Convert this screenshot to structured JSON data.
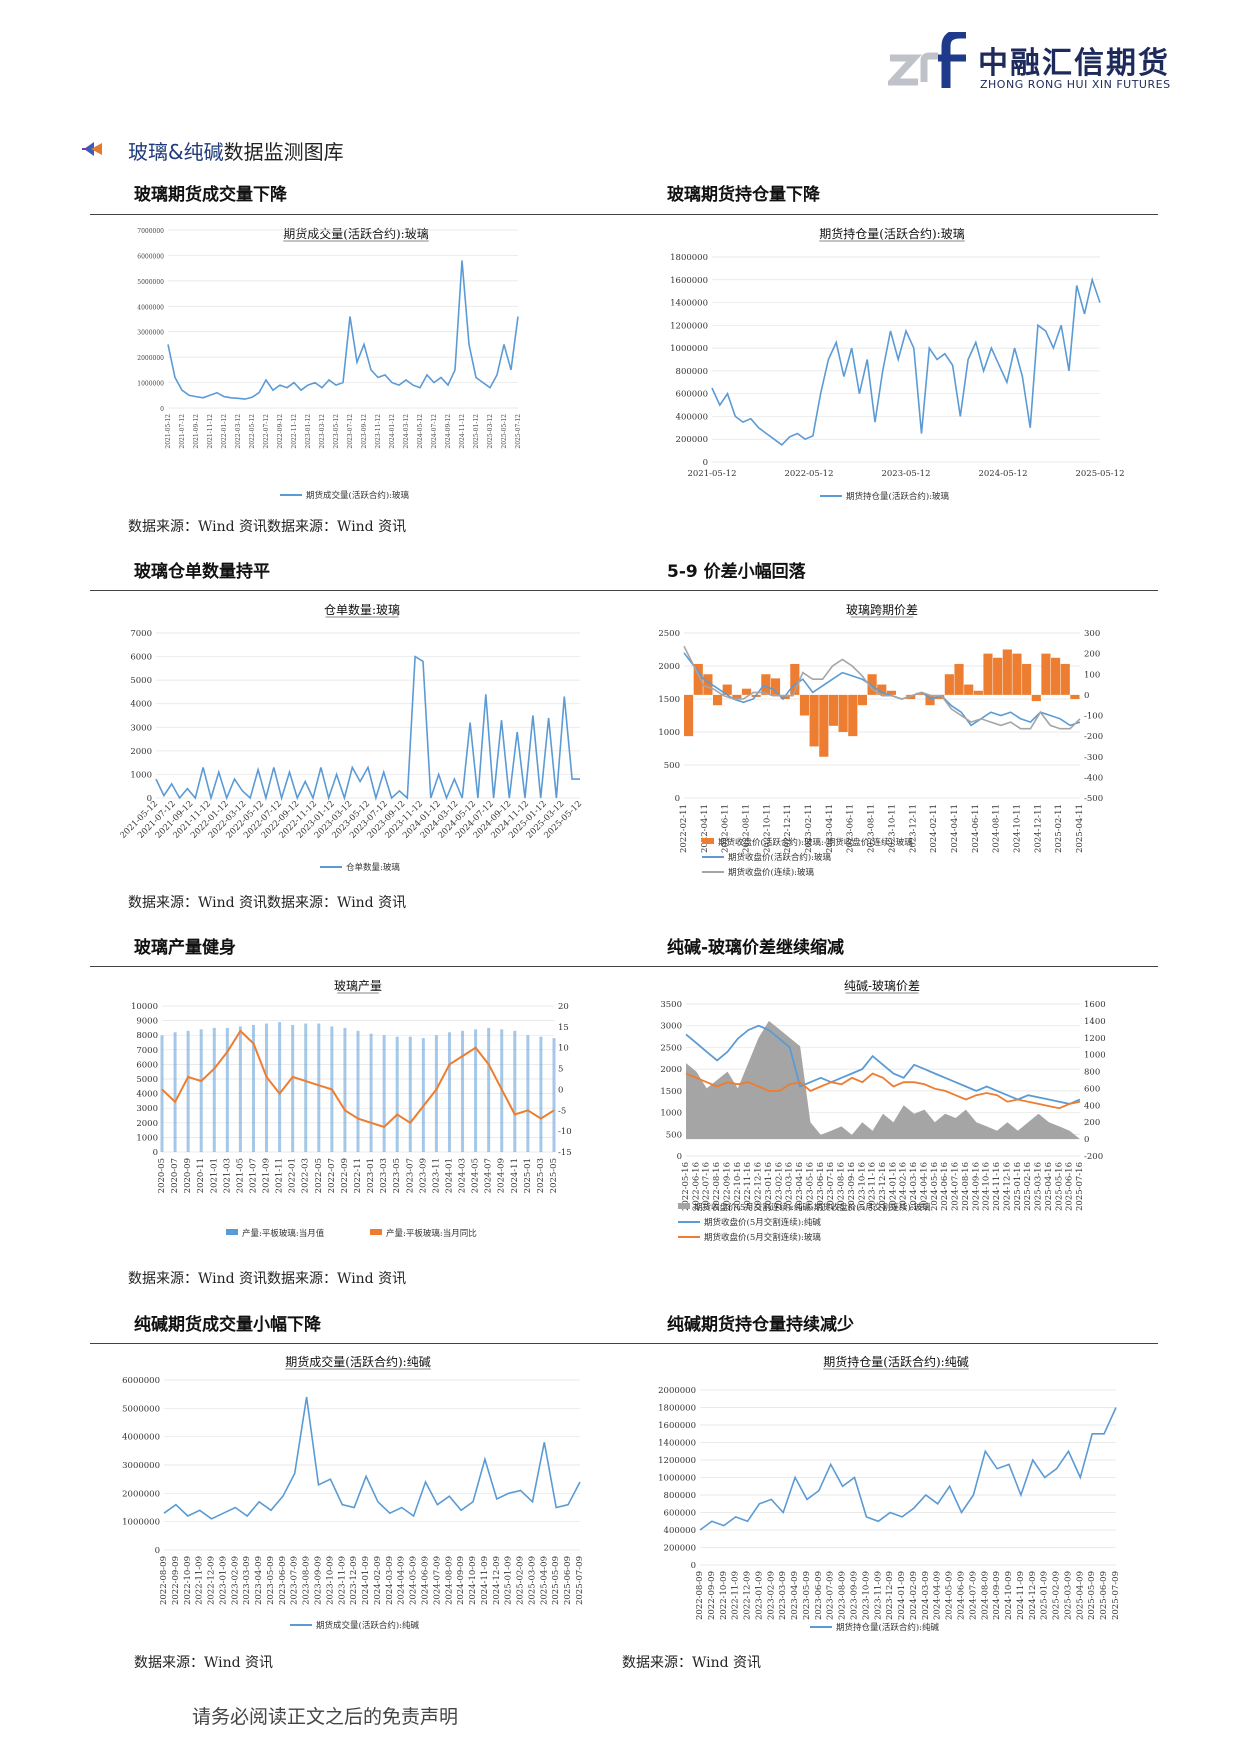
{
  "header": {
    "logo_cn": "中融汇信期货",
    "logo_en": "ZHONG RONG HUI XIN FUTURES",
    "brand_color": "#1f2a5c",
    "accent_color": "#0066cc"
  },
  "section": {
    "title_part1": "玻璃&纯碱",
    "title_part2": "数据监测图库",
    "icon": "arrow-bullet-icon"
  },
  "panels": [
    {
      "title": "玻璃期货成交量下降",
      "source": ""
    },
    {
      "title": "玻璃期货持仓量下降",
      "source": ""
    },
    {
      "title": "玻璃仓单数量持平",
      "source": ""
    },
    {
      "title": "5-9 价差小幅回落",
      "source": ""
    },
    {
      "title": "玻璃产量健身",
      "source": ""
    },
    {
      "title": "纯碱-玻璃价差继续缩减",
      "source": ""
    },
    {
      "title": "纯碱期货成交量小幅下降",
      "source": "数据来源：Wind 资讯"
    },
    {
      "title": "纯碱期货持仓量持续减少",
      "source": "数据来源：Wind 资讯"
    }
  ],
  "row_sources": [
    "数据来源：Wind 资讯数据来源：Wind 资讯",
    "数据来源：Wind 资讯数据来源：Wind 资讯",
    "数据来源：Wind 资讯数据来源：Wind 资讯"
  ],
  "footer": "请务必阅读正文之后的免责声明",
  "chart_data": [
    {
      "type": "line",
      "title": "期货成交量(活跃合约):玻璃",
      "y_ticks": [
        "7000000",
        "6000000",
        "5000000",
        "4000000",
        "3000000",
        "2000000",
        "1000000",
        "0"
      ],
      "ylim": [
        0,
        7000000
      ],
      "x_ticks": [
        "2021-05-12",
        "2021-07-12",
        "2021-09-12",
        "2021-11-12",
        "2022-01-12",
        "2022-03-12",
        "2022-05-12",
        "2022-07-12",
        "2022-09-12",
        "2022-11-12",
        "2023-01-12",
        "2023-03-12",
        "2023-05-12",
        "2023-07-12",
        "2023-09-12",
        "2023-11-12",
        "2024-01-12",
        "2024-03-12",
        "2024-05-12",
        "2024-07-12",
        "2024-09-12",
        "2024-11-12",
        "2025-01-12",
        "2025-03-12",
        "2025-05-12",
        "2025-07-12"
      ],
      "legend": "期货成交量(活跃合约):玻璃",
      "color": "#5b9bd5",
      "values": [
        2500000,
        1200000,
        700000,
        500000,
        450000,
        400000,
        500000,
        600000,
        450000,
        400000,
        380000,
        350000,
        420000,
        600000,
        1100000,
        700000,
        900000,
        800000,
        1000000,
        700000,
        900000,
        1000000,
        800000,
        1100000,
        900000,
        1000000,
        3600000,
        1800000,
        2500000,
        1500000,
        1200000,
        1300000,
        1000000,
        900000,
        1100000,
        900000,
        800000,
        1300000,
        1000000,
        1200000,
        900000,
        1500000,
        5800000,
        2500000,
        1200000,
        1000000,
        800000,
        1300000,
        2500000,
        1500000,
        3600000
      ]
    },
    {
      "type": "line",
      "title": "期货持仓量(活跃合约):玻璃",
      "y_ticks": [
        "1800000",
        "1600000",
        "1400000",
        "1200000",
        "1000000",
        "800000",
        "600000",
        "400000",
        "200000",
        "0"
      ],
      "ylim": [
        0,
        1800000
      ],
      "x_ticks": [
        "2021-05-12",
        "2022-05-12",
        "2023-05-12",
        "2024-05-12",
        "2025-05-12"
      ],
      "legend": "期货持仓量(活跃合约):玻璃",
      "color": "#5b9bd5",
      "values": [
        650000,
        500000,
        600000,
        400000,
        350000,
        380000,
        300000,
        250000,
        200000,
        150000,
        220000,
        250000,
        200000,
        230000,
        600000,
        900000,
        1050000,
        750000,
        1000000,
        600000,
        900000,
        350000,
        800000,
        1150000,
        900000,
        1150000,
        1000000,
        250000,
        1000000,
        900000,
        950000,
        850000,
        400000,
        900000,
        1050000,
        800000,
        1000000,
        850000,
        700000,
        1000000,
        750000,
        300000,
        1200000,
        1150000,
        1000000,
        1200000,
        800000,
        1550000,
        1300000,
        1600000,
        1400000
      ]
    },
    {
      "type": "line",
      "title": "仓单数量:玻璃",
      "y_ticks": [
        "7000",
        "6000",
        "5000",
        "4000",
        "3000",
        "2000",
        "1000",
        "0"
      ],
      "ylim": [
        0,
        7000
      ],
      "x_ticks": [
        "2021-05-12",
        "2021-07-12",
        "2021-09-12",
        "2021-11-12",
        "2022-01-12",
        "2022-03-12",
        "2022-05-12",
        "2022-07-12",
        "2022-09-12",
        "2022-11-12",
        "2023-01-12",
        "2023-03-12",
        "2023-05-12",
        "2023-07-12",
        "2023-09-12",
        "2023-11-12",
        "2024-01-12",
        "2024-03-12",
        "2024-05-12",
        "2024-07-12",
        "2024-09-12",
        "2024-11-12",
        "2025-01-12",
        "2025-03-12",
        "2025-05-12"
      ],
      "legend": "仓单数量:玻璃",
      "color": "#5b9bd5",
      "values": [
        800,
        100,
        600,
        0,
        400,
        0,
        1300,
        0,
        1100,
        0,
        800,
        300,
        0,
        1200,
        0,
        1300,
        0,
        1100,
        0,
        700,
        0,
        1300,
        0,
        1000,
        0,
        1300,
        700,
        1300,
        0,
        1100,
        0,
        300,
        0,
        6000,
        5800,
        0,
        1000,
        0,
        800,
        0,
        3200,
        0,
        4400,
        0,
        3300,
        0,
        2800,
        0,
        3500,
        0,
        3400,
        0,
        4300,
        800,
        800
      ]
    },
    {
      "type": "line",
      "title": "玻璃跨期价差",
      "y_ticks_left": [
        "2500",
        "2000",
        "1500",
        "1000",
        "500",
        "0"
      ],
      "y_ticks_right": [
        "300",
        "200",
        "100",
        "0",
        "-100",
        "-200",
        "-300",
        "-400",
        "-500"
      ],
      "ylim": [
        0,
        2500
      ],
      "ylim_right": [
        -500,
        300
      ],
      "x_ticks": [
        "2022-02-11",
        "2022-04-11",
        "2022-06-11",
        "2022-08-11",
        "2022-10-11",
        "2022-12-11",
        "2023-02-11",
        "2023-04-11",
        "2023-06-11",
        "2023-08-11",
        "2023-10-11",
        "2023-12-11",
        "2024-02-11",
        "2024-04-11",
        "2024-06-11",
        "2024-08-11",
        "2024-10-11",
        "2024-12-11",
        "2025-02-11",
        "2025-04-11"
      ],
      "series": [
        {
          "name": "期货收盘价(活跃合约):玻璃:-期货收盘价(连续):玻璃",
          "color": "#ed7d31",
          "values": [
            -200,
            150,
            100,
            -50,
            50,
            -20,
            30,
            -10,
            100,
            80,
            -20,
            150,
            -100,
            -250,
            -300,
            -150,
            -180,
            -200,
            -50,
            100,
            50,
            20,
            0,
            -20,
            10,
            -50,
            -20,
            100,
            150,
            50,
            20,
            200,
            180,
            220,
            200,
            150,
            -30,
            200,
            180,
            150,
            -20
          ]
        },
        {
          "name": "期货收盘价(活跃合约):玻璃",
          "color": "#5b9bd5",
          "values": [
            2200,
            2000,
            1800,
            1700,
            1600,
            1500,
            1450,
            1500,
            1700,
            1650,
            1500,
            1700,
            1800,
            1600,
            1700,
            1800,
            1900,
            1850,
            1800,
            1700,
            1600,
            1550,
            1500,
            1550,
            1600,
            1500,
            1550,
            1400,
            1300,
            1100,
            1200,
            1300,
            1250,
            1300,
            1200,
            1150,
            1300,
            1250,
            1200,
            1100,
            1150
          ]
        },
        {
          "name": "期货收盘价(连续):玻璃",
          "color": "#a5a5a5",
          "values": [
            2300,
            2000,
            1700,
            1650,
            1550,
            1500,
            1500,
            1600,
            1600,
            1550,
            1550,
            1550,
            1900,
            1800,
            1800,
            2000,
            2100,
            2000,
            1850,
            1650,
            1550,
            1550,
            1500,
            1550,
            1600,
            1550,
            1550,
            1350,
            1250,
            1150,
            1200,
            1150,
            1100,
            1150,
            1050,
            1050,
            1300,
            1100,
            1050,
            1050,
            1200
          ]
        }
      ]
    },
    {
      "type": "bar",
      "title": "玻璃产量",
      "y_ticks_left": [
        "10000",
        "9000",
        "8000",
        "7000",
        "6000",
        "5000",
        "4000",
        "3000",
        "2000",
        "1000",
        "0"
      ],
      "y_ticks_right": [
        "20",
        "15",
        "10",
        "5",
        "0",
        "-5",
        "-10",
        "-15"
      ],
      "ylim": [
        0,
        10000
      ],
      "ylim_right": [
        -15,
        20
      ],
      "x_ticks": [
        "2020-05",
        "2020-07",
        "2020-09",
        "2020-11",
        "2021-01",
        "2021-03",
        "2021-05",
        "2021-07",
        "2021-09",
        "2021-11",
        "2022-01",
        "2022-03",
        "2022-05",
        "2022-07",
        "2022-09",
        "2022-11",
        "2023-01",
        "2023-03",
        "2023-05",
        "2023-07",
        "2023-09",
        "2023-11",
        "2024-01",
        "2024-03",
        "2024-05",
        "2024-07",
        "2024-09",
        "2024-11",
        "2025-01",
        "2025-03",
        "2025-05"
      ],
      "series": [
        {
          "name": "产量:平板玻璃:当月值",
          "color": "#5b9bd5",
          "values": [
            8000,
            8200,
            8300,
            8400,
            8500,
            8500,
            8600,
            8700,
            8800,
            8900,
            8700,
            8800,
            8800,
            8600,
            8500,
            8300,
            8100,
            8000,
            7900,
            7900,
            7800,
            8000,
            8200,
            8300,
            8400,
            8500,
            8400,
            8300,
            8000,
            7900,
            7800
          ]
        },
        {
          "name": "产量:平板玻璃:当月同比",
          "color": "#ed7d31",
          "values": [
            0,
            -3,
            3,
            2,
            5,
            9,
            14,
            11,
            3,
            -1,
            3,
            2,
            1,
            0,
            -5,
            -7,
            -8,
            -9,
            -6,
            -8,
            -4,
            0,
            6,
            8,
            10,
            6,
            0,
            -6,
            -5,
            -7,
            -5
          ]
        }
      ]
    },
    {
      "type": "line",
      "title": "纯碱-玻璃价差",
      "y_ticks_left": [
        "3500",
        "3000",
        "2500",
        "2000",
        "1500",
        "1000",
        "500",
        "0"
      ],
      "y_ticks_right": [
        "1600",
        "1400",
        "1200",
        "1000",
        "800",
        "600",
        "400",
        "200",
        "0",
        "-200"
      ],
      "ylim": [
        0,
        3500
      ],
      "ylim_right": [
        -200,
        1600
      ],
      "x_ticks": [
        "2022-05-16",
        "2022-06-16",
        "2022-07-16",
        "2022-08-16",
        "2022-09-16",
        "2022-10-16",
        "2022-11-16",
        "2022-12-16",
        "2023-01-16",
        "2023-02-16",
        "2023-03-16",
        "2023-04-16",
        "2023-05-16",
        "2023-06-16",
        "2023-07-16",
        "2023-08-16",
        "2023-09-16",
        "2023-10-16",
        "2023-11-16",
        "2023-12-16",
        "2024-01-16",
        "2024-02-16",
        "2024-03-16",
        "2024-04-16",
        "2024-05-16",
        "2024-06-16",
        "2024-07-16",
        "2024-08-16",
        "2024-09-16",
        "2024-10-16",
        "2024-11-16",
        "2024-12-16",
        "2025-01-16",
        "2025-02-16",
        "2025-03-16",
        "2025-04-16",
        "2025-05-16",
        "2025-06-16",
        "2025-07-16"
      ],
      "series": [
        {
          "name": "期货收盘价(5月交割连续):纯碱-期货收盘价(5月交割连续):玻璃",
          "color": "#a5a5a5",
          "values": [
            900,
            800,
            600,
            700,
            800,
            600,
            900,
            1200,
            1400,
            1300,
            1200,
            1100,
            200,
            50,
            100,
            150,
            50,
            200,
            100,
            300,
            200,
            400,
            300,
            350,
            200,
            300,
            250,
            350,
            200,
            150,
            100,
            200,
            100,
            200,
            300,
            200,
            150,
            100,
            0
          ]
        },
        {
          "name": "期货收盘价(5月交割连续):纯碱",
          "color": "#5b9bd5",
          "values": [
            2800,
            2600,
            2400,
            2200,
            2400,
            2700,
            2900,
            3000,
            2900,
            2700,
            2500,
            1600,
            1700,
            1800,
            1700,
            1800,
            1900,
            2000,
            2300,
            2100,
            1900,
            1800,
            2100,
            2000,
            1900,
            1800,
            1700,
            1600,
            1500,
            1600,
            1500,
            1400,
            1300,
            1400,
            1350,
            1300,
            1250,
            1200,
            1300
          ]
        },
        {
          "name": "期货收盘价(5月交割连续):玻璃",
          "color": "#ed7d31",
          "values": [
            1900,
            1800,
            1700,
            1600,
            1700,
            1650,
            1700,
            1600,
            1500,
            1500,
            1650,
            1700,
            1500,
            1600,
            1700,
            1650,
            1800,
            1700,
            1900,
            1800,
            1600,
            1700,
            1700,
            1650,
            1550,
            1500,
            1400,
            1300,
            1400,
            1450,
            1400,
            1250,
            1300,
            1250,
            1200,
            1150,
            1100,
            1200,
            1250
          ]
        }
      ]
    },
    {
      "type": "line",
      "title": "期货成交量(活跃合约):纯碱",
      "y_ticks": [
        "6000000",
        "5000000",
        "4000000",
        "3000000",
        "2000000",
        "1000000",
        "0"
      ],
      "ylim": [
        0,
        6000000
      ],
      "x_ticks": [
        "2022-08-09",
        "2022-09-09",
        "2022-10-09",
        "2022-11-09",
        "2022-12-09",
        "2023-01-09",
        "2023-02-09",
        "2023-03-09",
        "2023-04-09",
        "2023-05-09",
        "2023-06-09",
        "2023-07-09",
        "2023-08-09",
        "2023-09-09",
        "2023-10-09",
        "2023-11-09",
        "2023-12-09",
        "2024-01-09",
        "2024-02-09",
        "2024-03-09",
        "2024-04-09",
        "2024-05-09",
        "2024-06-09",
        "2024-07-09",
        "2024-08-09",
        "2024-09-09",
        "2024-10-09",
        "2024-11-09",
        "2024-12-09",
        "2025-01-09",
        "2025-02-09",
        "2025-03-09",
        "2025-04-09",
        "2025-05-09",
        "2025-06-09",
        "2025-07-09"
      ],
      "legend": "期货成交量(活跃合约):纯碱",
      "color": "#5b9bd5",
      "values": [
        1300000,
        1600000,
        1200000,
        1400000,
        1100000,
        1300000,
        1500000,
        1200000,
        1700000,
        1400000,
        1900000,
        2700000,
        5400000,
        2300000,
        2500000,
        1600000,
        1500000,
        2600000,
        1700000,
        1300000,
        1500000,
        1200000,
        2400000,
        1600000,
        1900000,
        1400000,
        1700000,
        3200000,
        1800000,
        2000000,
        2100000,
        1700000,
        3800000,
        1500000,
        1600000,
        2400000
      ]
    },
    {
      "type": "line",
      "title": "期货持仓量(活跃合约):纯碱",
      "y_ticks": [
        "2000000",
        "1800000",
        "1600000",
        "1400000",
        "1200000",
        "1000000",
        "800000",
        "600000",
        "400000",
        "200000",
        "0"
      ],
      "ylim": [
        0,
        2000000
      ],
      "x_ticks": [
        "2022-08-09",
        "2022-09-09",
        "2022-10-09",
        "2022-11-09",
        "2022-12-09",
        "2023-01-09",
        "2023-02-09",
        "2023-03-09",
        "2023-04-09",
        "2023-05-09",
        "2023-06-09",
        "2023-07-09",
        "2023-08-09",
        "2023-09-09",
        "2023-10-09",
        "2023-11-09",
        "2023-12-09",
        "2024-01-09",
        "2024-02-09",
        "2024-03-09",
        "2024-04-09",
        "2024-05-09",
        "2024-06-09",
        "2024-07-09",
        "2024-08-09",
        "2024-09-09",
        "2024-10-09",
        "2024-11-09",
        "2024-12-09",
        "2025-01-09",
        "2025-02-09",
        "2025-03-09",
        "2025-04-09",
        "2025-05-09",
        "2025-06-09",
        "2025-07-09"
      ],
      "legend": "期货持仓量(活跃合约):纯碱",
      "color": "#5b9bd5",
      "values": [
        400000,
        500000,
        450000,
        550000,
        500000,
        700000,
        750000,
        600000,
        1000000,
        750000,
        850000,
        1150000,
        900000,
        1000000,
        550000,
        500000,
        600000,
        550000,
        650000,
        800000,
        700000,
        900000,
        600000,
        800000,
        1300000,
        1100000,
        1150000,
        800000,
        1200000,
        1000000,
        1100000,
        1300000,
        1000000,
        1500000,
        1500000,
        1800000
      ]
    }
  ]
}
